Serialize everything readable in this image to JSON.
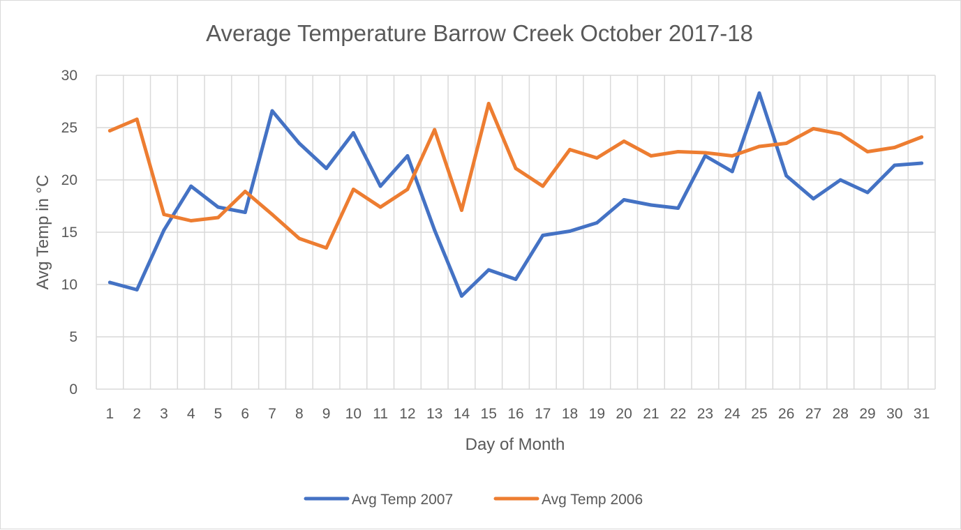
{
  "chart_data": {
    "type": "line",
    "title": "Average Temperature Barrow Creek October 2017-18",
    "xlabel": "Day of Month",
    "ylabel": "Avg Temp in °C",
    "categories": [
      "1",
      "2",
      "3",
      "4",
      "5",
      "6",
      "7",
      "8",
      "9",
      "10",
      "11",
      "12",
      "13",
      "14",
      "15",
      "16",
      "17",
      "18",
      "19",
      "20",
      "21",
      "22",
      "23",
      "24",
      "25",
      "26",
      "27",
      "28",
      "29",
      "30",
      "31"
    ],
    "ylim": [
      0,
      30
    ],
    "yticks": [
      0,
      5,
      10,
      15,
      20,
      25,
      30
    ],
    "grid": true,
    "legend_position": "bottom",
    "series": [
      {
        "name": "Avg Temp 2007",
        "color": "#4472c4",
        "values": [
          10.2,
          9.5,
          15.2,
          19.4,
          17.4,
          16.9,
          26.6,
          23.5,
          21.1,
          24.5,
          19.4,
          22.3,
          15.2,
          8.9,
          11.4,
          10.5,
          14.7,
          15.1,
          15.9,
          18.1,
          17.6,
          17.3,
          22.3,
          20.8,
          28.3,
          20.4,
          18.2,
          20.0,
          18.8,
          21.4,
          21.6
        ]
      },
      {
        "name": "Avg Temp 2006",
        "color": "#ed7d31",
        "values": [
          24.7,
          25.8,
          16.7,
          16.1,
          16.4,
          18.9,
          16.7,
          14.4,
          13.5,
          19.1,
          17.4,
          19.1,
          24.8,
          17.1,
          27.3,
          21.1,
          19.4,
          22.9,
          22.1,
          23.7,
          22.3,
          22.7,
          22.6,
          22.3,
          23.2,
          23.5,
          24.9,
          24.4,
          22.7,
          23.1,
          24.1
        ]
      }
    ]
  }
}
